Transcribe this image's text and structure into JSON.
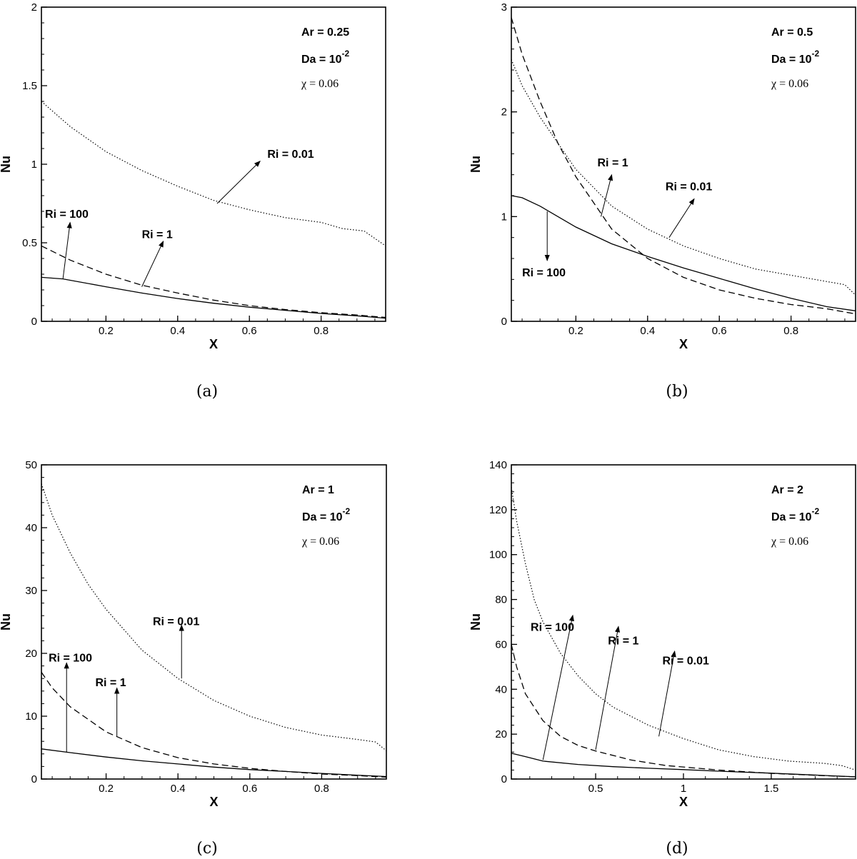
{
  "chart_data": [
    {
      "type": "line",
      "caption": "(a)",
      "xlabel": "X",
      "ylabel": "Nu",
      "xlim": [
        0.02,
        0.98
      ],
      "ylim": [
        0,
        2
      ],
      "xticks": [
        0.2,
        0.4,
        0.6,
        0.8
      ],
      "xtick_labels": [
        "0.2",
        "0.4",
        "0.6",
        "0.8"
      ],
      "yticks": [
        0,
        0.5,
        1,
        1.5,
        2
      ],
      "ytick_labels": [
        "0",
        "0.5",
        "1",
        "1.5",
        "2"
      ],
      "params": [
        "Ar = 0.25",
        "Da = 10",
        "χ = 0.06"
      ],
      "da_exponent": "-2",
      "series": [
        {
          "label": "Ri = 0.01",
          "style": "dotted",
          "x": [
            0.02,
            0.1,
            0.2,
            0.3,
            0.4,
            0.5,
            0.6,
            0.7,
            0.8,
            0.86,
            0.92,
            0.98
          ],
          "y": [
            1.4,
            1.24,
            1.08,
            0.96,
            0.86,
            0.77,
            0.71,
            0.66,
            0.63,
            0.59,
            0.575,
            0.48
          ]
        },
        {
          "label": "Ri = 1",
          "style": "dashed",
          "x": [
            0.02,
            0.1,
            0.2,
            0.3,
            0.4,
            0.5,
            0.6,
            0.7,
            0.8,
            0.9,
            0.98
          ],
          "y": [
            0.48,
            0.39,
            0.3,
            0.23,
            0.18,
            0.135,
            0.1,
            0.075,
            0.055,
            0.04,
            0.025
          ]
        },
        {
          "label": "Ri = 100",
          "style": "solid",
          "x": [
            0.02,
            0.08,
            0.2,
            0.3,
            0.4,
            0.5,
            0.6,
            0.7,
            0.8,
            0.9,
            0.98
          ],
          "y": [
            0.28,
            0.27,
            0.22,
            0.18,
            0.145,
            0.115,
            0.09,
            0.07,
            0.05,
            0.035,
            0.02
          ]
        }
      ],
      "annotations": [
        {
          "text": "Ri = 0.01",
          "tx": 0.65,
          "ty": 1.04,
          "from": [
            0.51,
            0.75
          ],
          "to": [
            0.63,
            1.02
          ]
        },
        {
          "text": "Ri = 1",
          "tx": 0.3,
          "ty": 0.53,
          "from": [
            0.3,
            0.22
          ],
          "to": [
            0.36,
            0.51
          ]
        },
        {
          "text": "Ri = 100",
          "tx": 0.03,
          "ty": 0.66,
          "from": [
            0.08,
            0.27
          ],
          "to": [
            0.1,
            0.63
          ]
        }
      ]
    },
    {
      "type": "line",
      "caption": "(b)",
      "xlabel": "X",
      "ylabel": "Nu",
      "xlim": [
        0.02,
        0.98
      ],
      "ylim": [
        0,
        3
      ],
      "xticks": [
        0.2,
        0.4,
        0.6,
        0.8
      ],
      "xtick_labels": [
        "0.2",
        "0.4",
        "0.6",
        "0.8"
      ],
      "yticks": [
        0,
        1,
        2,
        3
      ],
      "ytick_labels": [
        "0",
        "1",
        "2",
        "3"
      ],
      "params": [
        "Ar = 0.5",
        "Da = 10",
        "χ = 0.06"
      ],
      "da_exponent": "-2",
      "series": [
        {
          "label": "Ri = 0.01",
          "style": "dotted",
          "x": [
            0.02,
            0.05,
            0.1,
            0.15,
            0.2,
            0.3,
            0.4,
            0.5,
            0.6,
            0.7,
            0.8,
            0.9,
            0.95,
            0.98
          ],
          "y": [
            2.5,
            2.25,
            1.95,
            1.7,
            1.45,
            1.1,
            0.88,
            0.72,
            0.6,
            0.5,
            0.44,
            0.38,
            0.35,
            0.25
          ]
        },
        {
          "label": "Ri = 1",
          "style": "dashed",
          "x": [
            0.02,
            0.05,
            0.1,
            0.15,
            0.2,
            0.3,
            0.4,
            0.5,
            0.6,
            0.7,
            0.8,
            0.9,
            0.98
          ],
          "y": [
            2.9,
            2.55,
            2.1,
            1.7,
            1.38,
            0.88,
            0.6,
            0.42,
            0.3,
            0.22,
            0.16,
            0.12,
            0.07
          ]
        },
        {
          "label": "Ri = 100",
          "style": "solid",
          "x": [
            0.02,
            0.05,
            0.1,
            0.2,
            0.3,
            0.4,
            0.5,
            0.6,
            0.7,
            0.8,
            0.9,
            0.98
          ],
          "y": [
            1.2,
            1.18,
            1.1,
            0.9,
            0.74,
            0.62,
            0.51,
            0.41,
            0.31,
            0.22,
            0.14,
            0.1
          ]
        }
      ],
      "annotations": [
        {
          "text": "Ri = 1",
          "tx": 0.26,
          "ty": 1.48,
          "from": [
            0.27,
            1.0
          ],
          "to": [
            0.3,
            1.4
          ]
        },
        {
          "text": "Ri = 0.01",
          "tx": 0.45,
          "ty": 1.25,
          "from": [
            0.46,
            0.8
          ],
          "to": [
            0.53,
            1.17
          ]
        },
        {
          "text": "Ri = 100",
          "tx": 0.05,
          "ty": 0.43,
          "from": [
            0.12,
            1.05
          ],
          "to": [
            0.12,
            0.58
          ]
        }
      ]
    },
    {
      "type": "line",
      "caption": "(c)",
      "xlabel": "X",
      "ylabel": "Nu",
      "xlim": [
        0.02,
        0.98
      ],
      "ylim": [
        0,
        50
      ],
      "xticks": [
        0.2,
        0.4,
        0.6,
        0.8
      ],
      "xtick_labels": [
        "0.2",
        "0.4",
        "0.6",
        "0.8"
      ],
      "yticks": [
        0,
        10,
        20,
        30,
        40,
        50
      ],
      "ytick_labels": [
        "0",
        "10",
        "20",
        "30",
        "40",
        "50"
      ],
      "params": [
        "Ar = 1",
        "Da = 10",
        "χ = 0.06"
      ],
      "da_exponent": "-2",
      "series": [
        {
          "label": "Ri = 0.01",
          "style": "dotted",
          "x": [
            0.02,
            0.05,
            0.1,
            0.15,
            0.2,
            0.3,
            0.4,
            0.5,
            0.6,
            0.7,
            0.8,
            0.9,
            0.95,
            0.98
          ],
          "y": [
            47,
            42,
            36,
            31,
            27,
            20.5,
            16,
            12.5,
            10,
            8.2,
            7,
            6.3,
            5.9,
            4.5
          ]
        },
        {
          "label": "Ri = 1",
          "style": "dashed",
          "x": [
            0.02,
            0.05,
            0.1,
            0.2,
            0.3,
            0.4,
            0.5,
            0.6,
            0.7,
            0.8,
            0.9,
            0.98
          ],
          "y": [
            17,
            14.5,
            11.5,
            7.5,
            5,
            3.4,
            2.4,
            1.7,
            1.2,
            0.8,
            0.55,
            0.3
          ]
        },
        {
          "label": "Ri = 100",
          "style": "solid",
          "x": [
            0.02,
            0.1,
            0.2,
            0.3,
            0.4,
            0.5,
            0.6,
            0.7,
            0.8,
            0.9,
            0.98
          ],
          "y": [
            4.8,
            4.2,
            3.5,
            2.9,
            2.4,
            1.9,
            1.5,
            1.2,
            0.9,
            0.6,
            0.4
          ]
        }
      ],
      "annotations": [
        {
          "text": "Ri = 0.01",
          "tx": 0.33,
          "ty": 24.5,
          "from": [
            0.41,
            16
          ],
          "to": [
            0.41,
            24.5
          ]
        },
        {
          "text": "Ri = 1",
          "tx": 0.17,
          "ty": 14.8,
          "from": [
            0.23,
            6.8
          ],
          "to": [
            0.23,
            14.5
          ]
        },
        {
          "text": "Ri = 100",
          "tx": 0.04,
          "ty": 18.7,
          "from": [
            0.09,
            4.3
          ],
          "to": [
            0.09,
            18.5
          ]
        }
      ]
    },
    {
      "type": "line",
      "caption": "(d)",
      "xlabel": "X",
      "ylabel": "Nu",
      "xlim": [
        0.02,
        1.98
      ],
      "ylim": [
        0,
        140
      ],
      "xticks": [
        0.5,
        1,
        1.5
      ],
      "xtick_labels": [
        "0.5",
        "1",
        "1.5"
      ],
      "yticks": [
        0,
        20,
        40,
        60,
        80,
        100,
        120,
        140
      ],
      "ytick_labels": [
        "0",
        "20",
        "40",
        "60",
        "80",
        "100",
        "120",
        "140"
      ],
      "params": [
        "Ar = 2",
        "Da = 10",
        "χ = 0.06"
      ],
      "da_exponent": "-2",
      "series": [
        {
          "label": "Ri = 0.01",
          "style": "dotted",
          "x": [
            0.02,
            0.05,
            0.1,
            0.15,
            0.2,
            0.3,
            0.4,
            0.5,
            0.6,
            0.8,
            1.0,
            1.2,
            1.4,
            1.6,
            1.8,
            1.9,
            1.98
          ],
          "y": [
            130,
            115,
            96,
            80,
            70,
            56,
            46,
            38,
            32,
            24,
            18,
            13,
            10,
            8,
            7,
            6,
            4
          ]
        },
        {
          "label": "Ri = 1",
          "style": "dashed",
          "x": [
            0.02,
            0.05,
            0.1,
            0.2,
            0.3,
            0.4,
            0.5,
            0.7,
            0.9,
            1.2,
            1.5,
            1.8,
            1.98
          ],
          "y": [
            60,
            50,
            38,
            26,
            19,
            15,
            12.5,
            8.5,
            6,
            4,
            2.5,
            1.5,
            1
          ]
        },
        {
          "label": "Ri = 100",
          "style": "solid",
          "x": [
            0.02,
            0.1,
            0.2,
            0.4,
            0.6,
            0.8,
            1.0,
            1.2,
            1.5,
            1.8,
            1.98
          ],
          "y": [
            11.5,
            10,
            8,
            6.5,
            5.5,
            4.8,
            4.2,
            3.5,
            2.6,
            1.6,
            1
          ]
        }
      ],
      "annotations": [
        {
          "text": "Ri = 100",
          "tx": 0.13,
          "ty": 66,
          "from": [
            0.2,
            8.5
          ],
          "to": [
            0.37,
            73
          ]
        },
        {
          "text": "Ri = 1",
          "tx": 0.57,
          "ty": 60,
          "from": [
            0.5,
            13
          ],
          "to": [
            0.63,
            68
          ]
        },
        {
          "text": "Ri = 0.01",
          "tx": 0.88,
          "ty": 51,
          "from": [
            0.86,
            19
          ],
          "to": [
            0.95,
            57
          ]
        }
      ]
    }
  ]
}
